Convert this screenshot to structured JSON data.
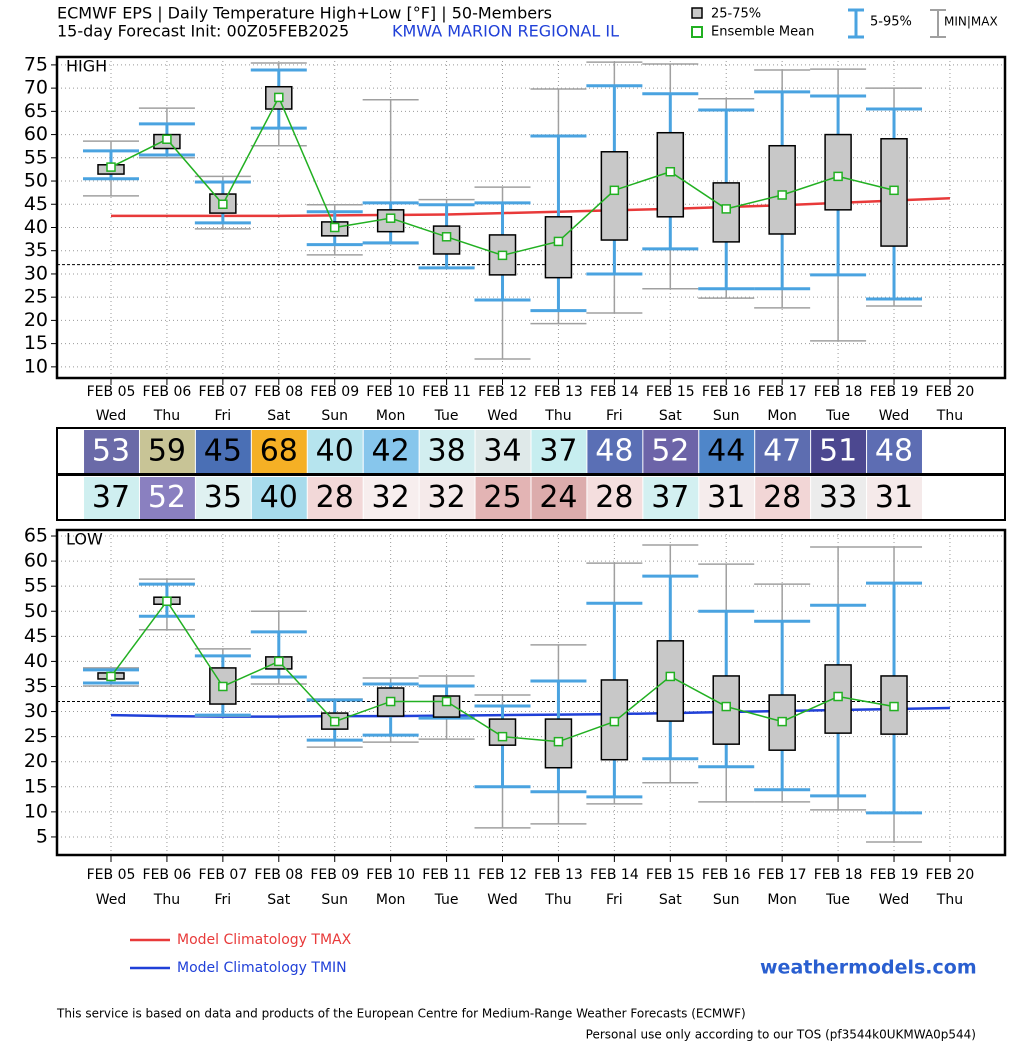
{
  "header": {
    "title": "ECMWF EPS | Daily Temperature High+Low [°F] | 50-Members",
    "subtitle": "15-day Forecast Init: 00Z05FEB2025",
    "station": "KMWA  MARION REGIONAL IL"
  },
  "legend": {
    "box": {
      "name": "25-75%",
      "color": "#c8c8c8"
    },
    "mean": {
      "name": "Ensemble Mean",
      "color": "#22b022"
    },
    "whisker": {
      "name": "5-95%",
      "color": "#4aa3e0"
    },
    "range": {
      "name": "MIN|MAX",
      "color": "#a0a0a0"
    }
  },
  "chart_data": [
    {
      "type": "box",
      "label": "HIGH",
      "categories": [
        "FEB 05",
        "FEB 06",
        "FEB 07",
        "FEB 08",
        "FEB 09",
        "FEB 10",
        "FEB 11",
        "FEB 12",
        "FEB 13",
        "FEB 14",
        "FEB 15",
        "FEB 16",
        "FEB 17",
        "FEB 18",
        "FEB 19",
        "FEB 20"
      ],
      "weekdays": [
        "Wed",
        "Thu",
        "Fri",
        "Sat",
        "Sun",
        "Mon",
        "Tue",
        "Wed",
        "Thu",
        "Fri",
        "Sat",
        "Sun",
        "Mon",
        "Tue",
        "Wed",
        "Thu"
      ],
      "stats": {
        "max": [
          58.6,
          65.7,
          51.0,
          75.4,
          44.9,
          67.5,
          46.0,
          48.7,
          69.8,
          75.6,
          75.2,
          67.7,
          73.9,
          74.1,
          70.0,
          null
        ],
        "p95": [
          56.5,
          62.3,
          49.8,
          73.9,
          43.4,
          45.3,
          44.9,
          45.3,
          59.7,
          70.5,
          68.8,
          65.3,
          69.2,
          68.3,
          65.5,
          null
        ],
        "p75": [
          53.5,
          60.0,
          47.2,
          70.3,
          41.2,
          43.8,
          40.3,
          38.4,
          42.3,
          56.3,
          60.4,
          49.6,
          57.6,
          60.0,
          59.1,
          null
        ],
        "mean": [
          53,
          59,
          45,
          68,
          40,
          42,
          38,
          34,
          37,
          48,
          52,
          44,
          47,
          51,
          48,
          null
        ],
        "p25": [
          51.5,
          57.0,
          43.1,
          65.5,
          38.2,
          39.1,
          34.3,
          29.8,
          29.2,
          37.3,
          42.3,
          36.9,
          38.6,
          43.8,
          36.0,
          null
        ],
        "p5": [
          50.5,
          55.6,
          41.0,
          61.4,
          36.3,
          36.7,
          31.3,
          24.4,
          22.1,
          30.0,
          35.4,
          26.8,
          26.8,
          29.8,
          24.6,
          null
        ],
        "min": [
          46.8,
          55.0,
          39.7,
          57.6,
          34.1,
          36.5,
          31.3,
          11.7,
          19.3,
          21.6,
          26.8,
          24.8,
          22.7,
          15.6,
          23.1,
          null
        ]
      },
      "mean_cell_colors": [
        "#6a6aa8",
        "#c8c496",
        "#4a6fb5",
        "#f5b025",
        "#b6e4ee",
        "#87c6ec",
        "#d2eef0",
        "#dfe9e9",
        "#c7eef0",
        "#5a6fb5",
        "#6c64a8",
        "#4f86c9",
        "#5d6db0",
        "#4c4890",
        "#5d6db3",
        null
      ],
      "mean_text_colors": [
        "#ffffff",
        "#000000",
        "#000000",
        "#000000",
        "#000000",
        "#000000",
        "#000000",
        "#000000",
        "#000000",
        "#ffffff",
        "#ffffff",
        "#000000",
        "#ffffff",
        "#ffffff",
        "#ffffff",
        null
      ],
      "climatology": {
        "name": "Model Climatology TMAX",
        "color": "#e83a3a",
        "values": [
          42.5,
          42.5,
          42.5,
          42.5,
          42.6,
          42.7,
          42.8,
          43.1,
          43.4,
          43.7,
          44.0,
          44.4,
          44.8,
          45.3,
          45.8,
          46.3
        ]
      },
      "reference_line": 32,
      "ylim": [
        7.6,
        76.7
      ],
      "yticks": [
        10,
        15,
        20,
        25,
        30,
        35,
        40,
        45,
        50,
        55,
        60,
        65,
        70,
        75
      ],
      "grid": true
    },
    {
      "type": "box",
      "label": "LOW",
      "categories": [
        "FEB 05",
        "FEB 06",
        "FEB 07",
        "FEB 08",
        "FEB 09",
        "FEB 10",
        "FEB 11",
        "FEB 12",
        "FEB 13",
        "FEB 14",
        "FEB 15",
        "FEB 16",
        "FEB 17",
        "FEB 18",
        "FEB 19",
        "FEB 20"
      ],
      "weekdays": [
        "Wed",
        "Thu",
        "Fri",
        "Sat",
        "Sun",
        "Mon",
        "Tue",
        "Wed",
        "Thu",
        "Fri",
        "Sat",
        "Sun",
        "Mon",
        "Tue",
        "Wed",
        "Thu"
      ],
      "stats": {
        "max": [
          38.7,
          56.4,
          42.5,
          50.0,
          32.5,
          36.7,
          37.1,
          33.3,
          43.3,
          59.6,
          63.2,
          59.4,
          55.4,
          62.8,
          62.8,
          null
        ],
        "p95": [
          38.3,
          55.4,
          41.1,
          45.9,
          32.3,
          35.5,
          35.1,
          31.1,
          36.1,
          51.6,
          57.0,
          50.0,
          48.0,
          51.2,
          55.6,
          null
        ],
        "p75": [
          37.7,
          52.8,
          38.7,
          40.9,
          29.7,
          34.7,
          33.1,
          28.5,
          28.5,
          36.3,
          44.1,
          37.1,
          33.3,
          39.3,
          37.1,
          null
        ],
        "mean": [
          37,
          52,
          35,
          40,
          28,
          32,
          32,
          25,
          24,
          28,
          37,
          31,
          28,
          33,
          31,
          null
        ],
        "p25": [
          36.5,
          51.4,
          31.5,
          38.5,
          26.5,
          29.1,
          28.9,
          23.3,
          18.8,
          20.4,
          28.1,
          23.5,
          22.3,
          25.7,
          25.5,
          null
        ],
        "p5": [
          35.7,
          49.0,
          29.3,
          36.9,
          24.3,
          25.3,
          28.7,
          15.0,
          14.0,
          13.0,
          20.6,
          19.0,
          14.4,
          13.2,
          9.8,
          null
        ],
        "min": [
          35.1,
          46.3,
          29.1,
          35.5,
          22.9,
          23.9,
          24.5,
          6.8,
          7.6,
          11.6,
          15.8,
          12.0,
          12.0,
          10.4,
          4.0,
          null
        ]
      },
      "mean_cell_colors": [
        "#cfeff0",
        "#8a80c0",
        "#dff1f1",
        "#a7dbec",
        "#f2d8d8",
        "#f7eeee",
        "#f5eaea",
        "#e3b4b4",
        "#dcacac",
        "#f4dede",
        "#d3f0f1",
        "#f5ecec",
        "#f2d6d6",
        "#ececec",
        "#f5eaea",
        null
      ],
      "mean_text_colors": [
        "#000000",
        "#ffffff",
        "#000000",
        "#000000",
        "#000000",
        "#000000",
        "#000000",
        "#000000",
        "#000000",
        "#000000",
        "#000000",
        "#000000",
        "#000000",
        "#000000",
        "#000000",
        null
      ],
      "climatology": {
        "name": "Model Climatology TMIN",
        "color": "#2040d8",
        "values": [
          29.3,
          29.1,
          29.0,
          29.0,
          29.1,
          29.1,
          29.2,
          29.3,
          29.4,
          29.5,
          29.7,
          29.9,
          30.1,
          30.3,
          30.5,
          30.7
        ]
      },
      "reference_line": 32,
      "ylim": [
        1.4,
        66.2
      ],
      "yticks": [
        5,
        10,
        15,
        20,
        25,
        30,
        35,
        40,
        45,
        50,
        55,
        60,
        65
      ],
      "grid": true
    }
  ],
  "brand": "weathermodels.com",
  "footer": {
    "source": "This service is based on data and products of the European Centre for Medium-Range Weather Forecasts (ECMWF)",
    "terms": "Personal use only according to our TOS (pf3544k0UKMWA0p544)"
  }
}
